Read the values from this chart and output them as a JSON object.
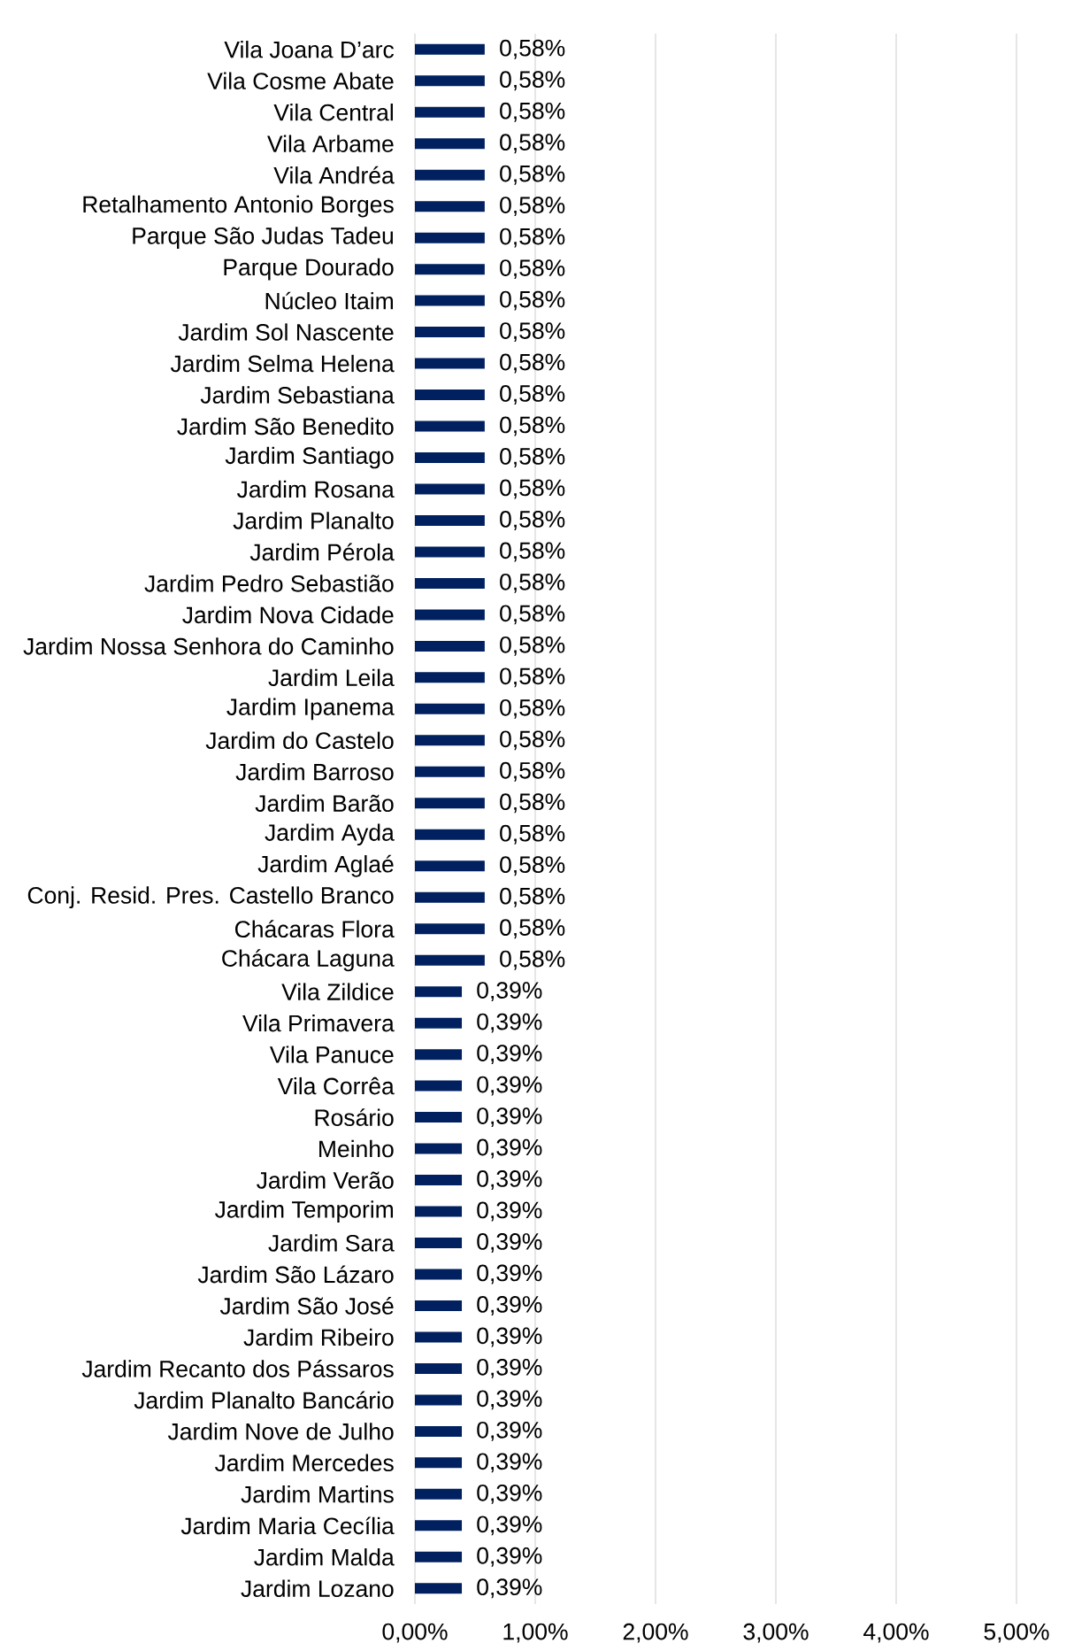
{
  "chart_data": {
    "type": "bar",
    "orientation": "horizontal",
    "categories": [
      "Vila Joana D’arc",
      "Vila Cosme Abate",
      "Vila Central",
      "Vila Arbame",
      "Vila Andréa",
      "Retalhamento Antonio Borges",
      "Parque São Judas Tadeu",
      "Parque Dourado",
      "Núcleo Itaim",
      "Jardim Sol Nascente",
      "Jardim Selma Helena",
      "Jardim Sebastiana",
      "Jardim São Benedito",
      "Jardim Santiago",
      "Jardim Rosana",
      "Jardim Planalto",
      "Jardim Pérola",
      "Jardim Pedro Sebastião",
      "Jardim Nova Cidade",
      "Jardim Nossa Senhora do Caminho",
      "Jardim Leila",
      "Jardim Ipanema",
      "Jardim do Castelo",
      "Jardim Barroso",
      "Jardim Barão",
      "Jardim Ayda",
      "Jardim Aglaé",
      "Conj. Resid. Pres. Castello Branco",
      "Chácaras Flora",
      "Chácara Laguna",
      "Vila Zildice",
      "Vila Primavera",
      "Vila Panuce",
      "Vila Corrêa",
      "Rosário",
      "Meinho",
      "Jardim Verão",
      "Jardim Temporim",
      "Jardim Sara",
      "Jardim São Lázaro",
      "Jardim São José",
      "Jardim Ribeiro",
      "Jardim Recanto dos Pássaros",
      "Jardim Planalto Bancário",
      "Jardim Nove de Julho",
      "Jardim Mercedes",
      "Jardim Martins",
      "Jardim Maria Cecília",
      "Jardim Malda",
      "Jardim Lozano"
    ],
    "values": [
      0.58,
      0.58,
      0.58,
      0.58,
      0.58,
      0.58,
      0.58,
      0.58,
      0.58,
      0.58,
      0.58,
      0.58,
      0.58,
      0.58,
      0.58,
      0.58,
      0.58,
      0.58,
      0.58,
      0.58,
      0.58,
      0.58,
      0.58,
      0.58,
      0.58,
      0.58,
      0.58,
      0.58,
      0.58,
      0.58,
      0.39,
      0.39,
      0.39,
      0.39,
      0.39,
      0.39,
      0.39,
      0.39,
      0.39,
      0.39,
      0.39,
      0.39,
      0.39,
      0.39,
      0.39,
      0.39,
      0.39,
      0.39,
      0.39,
      0.39
    ],
    "value_labels": [
      "0,58%",
      "0,58%",
      "0,58%",
      "0,58%",
      "0,58%",
      "0,58%",
      "0,58%",
      "0,58%",
      "0,58%",
      "0,58%",
      "0,58%",
      "0,58%",
      "0,58%",
      "0,58%",
      "0,58%",
      "0,58%",
      "0,58%",
      "0,58%",
      "0,58%",
      "0,58%",
      "0,58%",
      "0,58%",
      "0,58%",
      "0,58%",
      "0,58%",
      "0,58%",
      "0,58%",
      "0,58%",
      "0,58%",
      "0,58%",
      "0,39%",
      "0,39%",
      "0,39%",
      "0,39%",
      "0,39%",
      "0,39%",
      "0,39%",
      "0,39%",
      "0,39%",
      "0,39%",
      "0,39%",
      "0,39%",
      "0,39%",
      "0,39%",
      "0,39%",
      "0,39%",
      "0,39%",
      "0,39%",
      "0,39%",
      "0,39%"
    ],
    "color": "#002060",
    "xlim": [
      0,
      5
    ],
    "xticks": [
      {
        "value": 0,
        "label": "0,00%"
      },
      {
        "value": 1,
        "label": "1,00%"
      },
      {
        "value": 2,
        "label": "2,00%"
      },
      {
        "value": 3,
        "label": "3,00%"
      },
      {
        "value": 4,
        "label": "4,00%"
      },
      {
        "value": 5,
        "label": "5,00%"
      }
    ],
    "grid": "x"
  }
}
